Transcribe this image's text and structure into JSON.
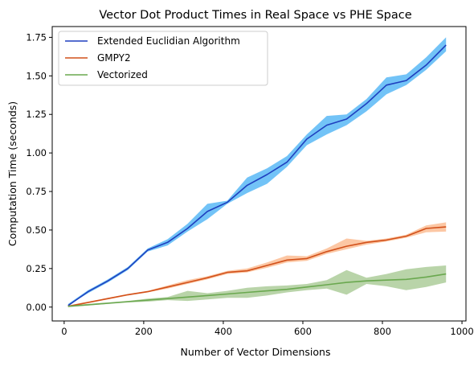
{
  "chart_data": {
    "type": "line",
    "title": "Vector Dot Product Times in Real Space vs PHE Space",
    "xlabel": "Number of Vector Dimensions",
    "ylabel": "Computation Time (seconds)",
    "xlim": [
      -30,
      1010
    ],
    "ylim": [
      -0.09,
      1.82
    ],
    "xticks": [
      0,
      200,
      400,
      600,
      800,
      1000
    ],
    "yticks": [
      0.0,
      0.25,
      0.5,
      0.75,
      1.0,
      1.25,
      1.5,
      1.75
    ],
    "xtick_labels": [
      "0",
      "200",
      "400",
      "600",
      "800",
      "1000"
    ],
    "ytick_labels": [
      "0.00",
      "0.25",
      "0.50",
      "0.75",
      "1.00",
      "1.25",
      "1.50",
      "1.75"
    ],
    "grid": false,
    "legend_position": "top-left",
    "x": [
      10,
      60,
      110,
      160,
      210,
      260,
      310,
      360,
      410,
      460,
      510,
      560,
      610,
      660,
      710,
      760,
      810,
      860,
      910,
      960
    ],
    "series": [
      {
        "name": "Extended Euclidian Algorithm",
        "color": "#1f3fbf",
        "band_color": "#4fb4f5",
        "values": [
          0.01,
          0.1,
          0.17,
          0.25,
          0.37,
          0.42,
          0.51,
          0.62,
          0.68,
          0.79,
          0.86,
          0.94,
          1.09,
          1.18,
          1.22,
          1.32,
          1.44,
          1.47,
          1.57,
          1.7
        ],
        "lower": [
          0.01,
          0.09,
          0.16,
          0.24,
          0.36,
          0.4,
          0.49,
          0.57,
          0.67,
          0.74,
          0.8,
          0.91,
          1.05,
          1.12,
          1.18,
          1.27,
          1.38,
          1.44,
          1.54,
          1.66
        ],
        "upper": [
          0.02,
          0.11,
          0.18,
          0.26,
          0.38,
          0.44,
          0.54,
          0.67,
          0.69,
          0.84,
          0.9,
          0.98,
          1.12,
          1.24,
          1.25,
          1.35,
          1.49,
          1.51,
          1.62,
          1.75
        ]
      },
      {
        "name": "GMPY2",
        "color": "#d2501a",
        "band_color": "#fbb98d",
        "values": [
          0.005,
          0.03,
          0.055,
          0.08,
          0.1,
          0.13,
          0.16,
          0.19,
          0.225,
          0.235,
          0.27,
          0.305,
          0.315,
          0.36,
          0.395,
          0.42,
          0.435,
          0.46,
          0.51,
          0.52
        ],
        "lower": [
          0.0,
          0.025,
          0.05,
          0.075,
          0.095,
          0.12,
          0.15,
          0.18,
          0.215,
          0.225,
          0.255,
          0.29,
          0.3,
          0.345,
          0.375,
          0.405,
          0.425,
          0.45,
          0.485,
          0.49
        ],
        "upper": [
          0.01,
          0.035,
          0.06,
          0.085,
          0.105,
          0.14,
          0.175,
          0.2,
          0.235,
          0.25,
          0.29,
          0.335,
          0.33,
          0.38,
          0.445,
          0.43,
          0.445,
          0.47,
          0.53,
          0.55
        ]
      },
      {
        "name": "Vectorized",
        "color": "#6aa84f",
        "band_color": "#a8c994",
        "values": [
          0.005,
          0.015,
          0.025,
          0.035,
          0.045,
          0.055,
          0.065,
          0.075,
          0.085,
          0.095,
          0.105,
          0.115,
          0.13,
          0.145,
          0.16,
          0.17,
          0.175,
          0.18,
          0.195,
          0.215
        ],
        "lower": [
          0.0,
          0.01,
          0.02,
          0.03,
          0.035,
          0.045,
          0.04,
          0.05,
          0.06,
          0.06,
          0.075,
          0.095,
          0.11,
          0.12,
          0.08,
          0.15,
          0.135,
          0.11,
          0.13,
          0.16
        ],
        "upper": [
          0.01,
          0.02,
          0.03,
          0.04,
          0.055,
          0.065,
          0.105,
          0.09,
          0.105,
          0.125,
          0.135,
          0.14,
          0.15,
          0.175,
          0.24,
          0.19,
          0.215,
          0.245,
          0.26,
          0.27
        ]
      }
    ]
  }
}
